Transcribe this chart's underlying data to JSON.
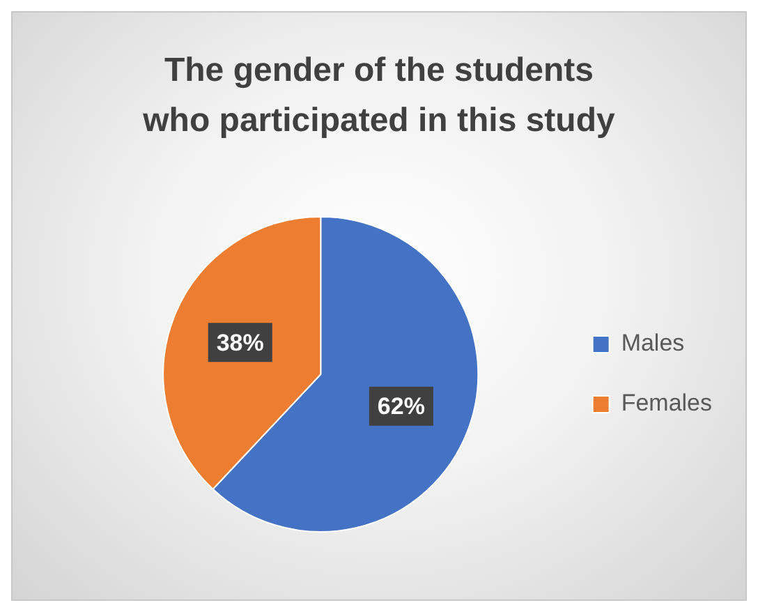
{
  "chart_data": {
    "type": "pie",
    "title": "The gender of the students who participated in this study",
    "categories": [
      "Males",
      "Females"
    ],
    "values": [
      62,
      38
    ],
    "colors": [
      "#4472c4",
      "#ed7d31"
    ],
    "value_labels": [
      "62%",
      "38%"
    ],
    "legend": "right"
  }
}
